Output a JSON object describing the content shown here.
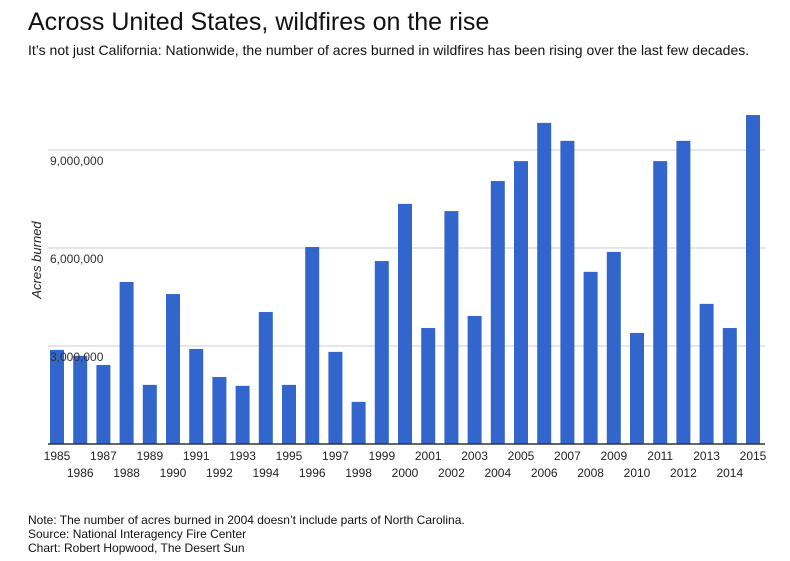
{
  "chart_data": {
    "type": "bar",
    "title": "Across United States, wildfires on the rise",
    "subtitle": "It’s not just California: Nationwide, the number of acres burned in wildfires has been rising over the last few decades.",
    "xlabel": "",
    "ylabel": "Acres burned",
    "ylim": [
      0,
      10200000
    ],
    "yticks": [
      3000000,
      6000000,
      9000000
    ],
    "ytick_labels": [
      "3,000,000",
      "6,000,000",
      "9,000,000"
    ],
    "grid": true,
    "bar_color": "#3266cc",
    "categories": [
      "1985",
      "1986",
      "1987",
      "1988",
      "1989",
      "1990",
      "1991",
      "1992",
      "1993",
      "1994",
      "1995",
      "1996",
      "1997",
      "1998",
      "1999",
      "2000",
      "2001",
      "2002",
      "2003",
      "2004",
      "2005",
      "2006",
      "2007",
      "2008",
      "2009",
      "2010",
      "2011",
      "2012",
      "2013",
      "2014",
      "2015"
    ],
    "values": [
      2880000,
      2700000,
      2420000,
      4960000,
      1810000,
      4590000,
      2910000,
      2050000,
      1780000,
      4040000,
      1810000,
      6030000,
      2820000,
      1290000,
      5600000,
      7350000,
      3550000,
      7130000,
      3920000,
      8050000,
      8660000,
      9830000,
      9280000,
      5270000,
      5880000,
      3400000,
      8660000,
      9280000,
      4290000,
      3550000,
      10070000
    ]
  },
  "notes": [
    "Note: The number of acres burned in 2004 doesn’t include parts of North Carolina.",
    "Source: National Interagency Fire Center",
    "Chart: Robert Hopwood, The Desert Sun"
  ]
}
